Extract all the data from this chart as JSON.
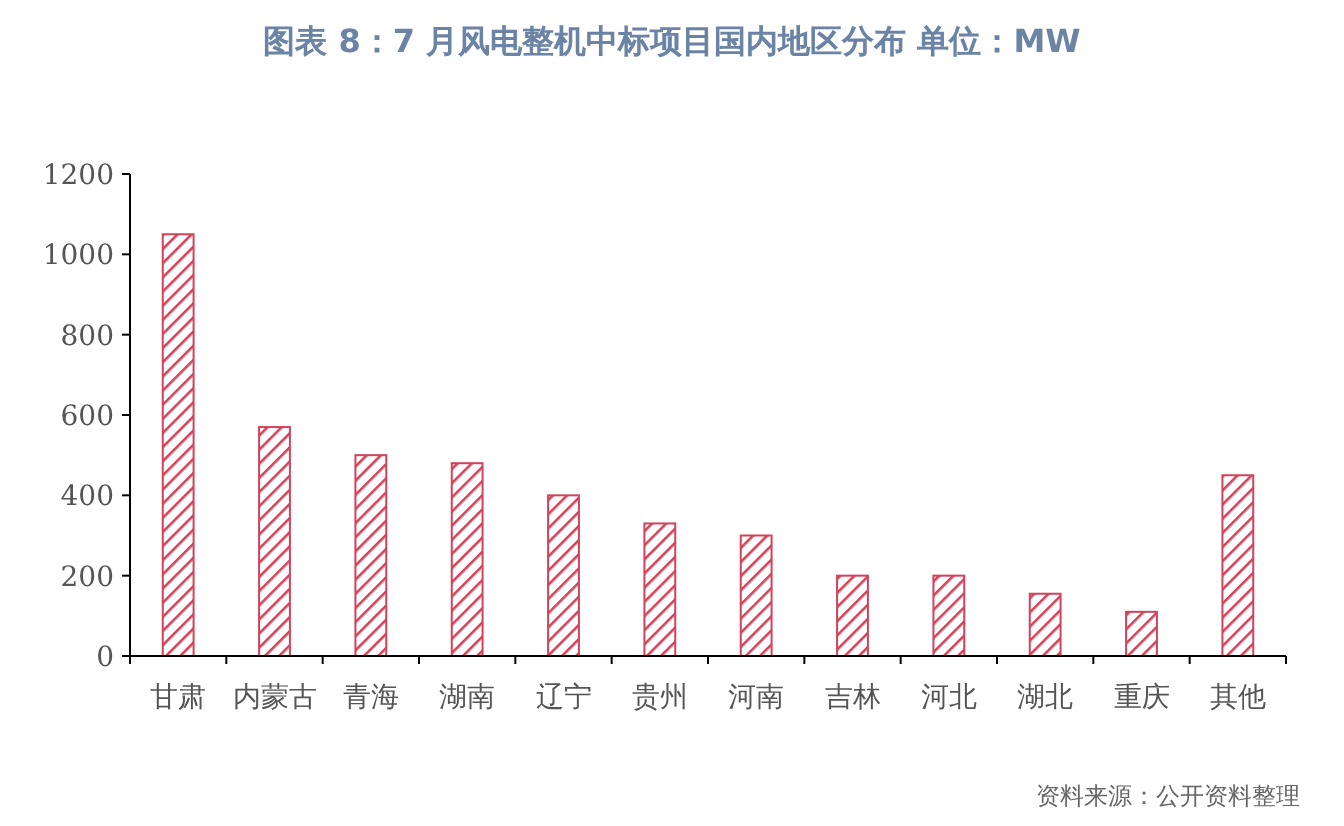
{
  "chart_data": {
    "type": "bar",
    "title": "图表 8：7 月风电整机中标项目国内地区分布  单位：MW",
    "categories": [
      "甘肃",
      "内蒙古",
      "青海",
      "湖南",
      "辽宁",
      "贵州",
      "河南",
      "吉林",
      "河北",
      "湖北",
      "重庆",
      "其他"
    ],
    "values": [
      1050,
      570,
      500,
      480,
      400,
      330,
      300,
      200,
      200,
      155,
      110,
      450
    ],
    "color": "#d2425a",
    "ylim": [
      0,
      1200
    ],
    "yticks": [
      0,
      200,
      400,
      600,
      800,
      1000,
      1200
    ],
    "grid": false,
    "annotations": [
      "资料来源：公开资料整理"
    ]
  }
}
